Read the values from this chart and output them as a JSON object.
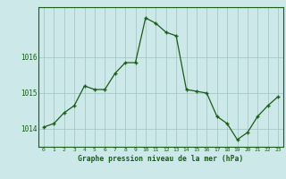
{
  "x": [
    0,
    1,
    2,
    3,
    4,
    5,
    6,
    7,
    8,
    9,
    10,
    11,
    12,
    13,
    14,
    15,
    16,
    17,
    18,
    19,
    20,
    21,
    22,
    23
  ],
  "y": [
    1014.05,
    1014.15,
    1014.45,
    1014.65,
    1015.2,
    1015.1,
    1015.1,
    1015.55,
    1015.85,
    1015.85,
    1017.1,
    1016.95,
    1016.7,
    1016.6,
    1015.1,
    1015.05,
    1015.0,
    1014.35,
    1014.15,
    1013.7,
    1013.9,
    1014.35,
    1014.65,
    1014.9
  ],
  "line_color": "#1a5c1a",
  "marker_color": "#1a5c1a",
  "bg_color": "#cce8e8",
  "grid_color": "#a0c0c0",
  "xlabel": "Graphe pression niveau de la mer (hPa)",
  "xlabel_color": "#1a5c1a",
  "tick_color": "#1a5c1a",
  "ylim": [
    1013.5,
    1017.4
  ],
  "yticks": [
    1014,
    1015,
    1016
  ],
  "xtick_labels": [
    "0",
    "1",
    "2",
    "3",
    "4",
    "5",
    "6",
    "7",
    "8",
    "9",
    "10",
    "11",
    "12",
    "13",
    "14",
    "15",
    "16",
    "17",
    "18",
    "19",
    "20",
    "21",
    "22",
    "23"
  ],
  "outer_bg": "#cce8e8"
}
